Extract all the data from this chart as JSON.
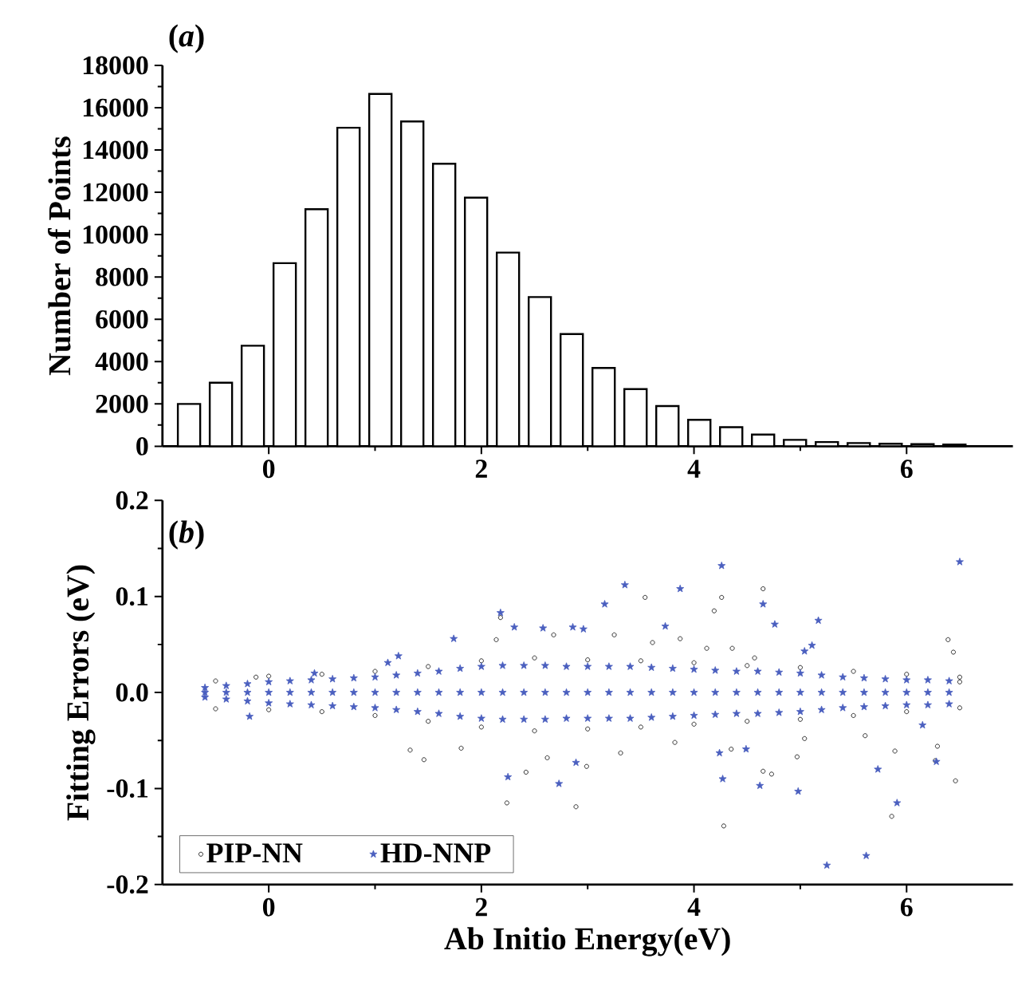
{
  "chart_data": [
    {
      "type": "histogram",
      "ylabel": "Number of Points",
      "annotations": [
        "(*a*)"
      ],
      "bins": [
        -0.9,
        -0.6,
        -0.3,
        0,
        0.3,
        0.6,
        0.9,
        1.2,
        1.5,
        1.8,
        2.1,
        2.4,
        2.7,
        3,
        3.3,
        3.6,
        3.9,
        4.2,
        4.5,
        4.8,
        5.1,
        5.4,
        5.7,
        6,
        6.3,
        6.6
      ],
      "values": [
        2000,
        3000,
        4750,
        8650,
        11200,
        15050,
        16650,
        15350,
        13350,
        11750,
        9150,
        7050,
        5300,
        3700,
        2700,
        1900,
        1250,
        900,
        550,
        300,
        200,
        150,
        120,
        100,
        80
      ],
      "color": "#ffffff",
      "xlim": [
        -1,
        7
      ],
      "xticks": [
        0,
        2,
        4,
        6
      ],
      "ylim": [
        0,
        18000
      ],
      "yticks": [
        0,
        2000,
        4000,
        6000,
        8000,
        10000,
        12000,
        14000,
        16000,
        18000
      ]
    },
    {
      "type": "scatter",
      "xlabel": "Ab Initio Energy(eV)",
      "ylabel": "Fitting Errors (eV)",
      "annotations": [
        "(*b*)"
      ],
      "xlim": [
        -1,
        7
      ],
      "xticks": [
        0,
        2,
        4,
        6
      ],
      "ylim": [
        -0.2,
        0.2
      ],
      "yticks": [
        {
          "value": -0.2,
          "label": "-0.2"
        },
        {
          "value": -0.1,
          "label": "-0.1"
        },
        {
          "value": 0,
          "label": "0.0"
        },
        {
          "value": 0.1,
          "label": "0.1"
        },
        {
          "value": 0.2,
          "label": "0.2"
        }
      ],
      "legend": "bottom left",
      "series": [
        {
          "name": "PIP-NN",
          "color": "#000000",
          "marker": "circle",
          "x": [
            -0.5,
            0,
            0.5,
            1,
            1.5,
            2,
            2.5,
            3,
            3.5,
            4,
            4.5,
            5,
            5.5,
            6,
            6.5,
            -0.5,
            0,
            0.5,
            1,
            1.5,
            2,
            2.5,
            3,
            3.5,
            4,
            4.5,
            5,
            5.5,
            6,
            6.5,
            4.65,
            4.26,
            3.54,
            4.19,
            2.18,
            6.39,
            6.44,
            2.14,
            2.68,
            3.25,
            3.61,
            3.87,
            4.12,
            4.36,
            4.57,
            1.33,
            1.46,
            1.81,
            2.24,
            2.42,
            2.62,
            2.89,
            2.99,
            3.31,
            3.82,
            4.28,
            4.35,
            4.62,
            4.65,
            4.73,
            5.04,
            4.97,
            5.61,
            5.89,
            5.86,
            6.46,
            6.29,
            6.27,
            6.5,
            -0.12
          ],
          "values": [
            0.012,
            0.017,
            0.019,
            0.022,
            0.027,
            0.033,
            0.036,
            0.034,
            0.033,
            0.031,
            0.028,
            0.026,
            0.022,
            0.019,
            0.016,
            -0.017,
            -0.018,
            -0.02,
            -0.024,
            -0.03,
            -0.036,
            -0.04,
            -0.038,
            -0.036,
            -0.033,
            -0.03,
            -0.028,
            -0.024,
            -0.02,
            -0.016,
            0.108,
            0.099,
            0.099,
            0.085,
            0.078,
            0.055,
            0.042,
            0.055,
            0.06,
            0.06,
            0.052,
            0.056,
            0.046,
            0.046,
            0.036,
            -0.06,
            -0.07,
            -0.058,
            -0.115,
            -0.083,
            -0.068,
            -0.119,
            -0.077,
            -0.063,
            -0.052,
            -0.139,
            -0.059,
            null,
            -0.082,
            -0.085,
            -0.048,
            -0.067,
            -0.045,
            -0.061,
            -0.129,
            -0.092,
            -0.056,
            -0.071,
            0.011,
            0.016
          ]
        },
        {
          "name": "HD-NNP",
          "color": "#4a5fbf",
          "marker": "star",
          "x": [
            -0.6,
            -0.4,
            -0.2,
            0,
            0.2,
            0.4,
            0.6,
            0.8,
            1,
            1.2,
            1.4,
            1.6,
            1.8,
            2,
            2.2,
            2.4,
            2.6,
            2.8,
            3,
            3.2,
            3.4,
            3.6,
            3.8,
            4,
            4.2,
            4.4,
            4.6,
            4.8,
            5,
            5.2,
            5.4,
            5.6,
            5.8,
            6,
            6.2,
            6.4,
            -0.6,
            -0.4,
            -0.2,
            0,
            0.2,
            0.4,
            0.6,
            0.8,
            1,
            1.2,
            1.4,
            1.6,
            1.8,
            2,
            2.2,
            2.4,
            2.6,
            2.8,
            3,
            3.2,
            3.4,
            3.6,
            3.8,
            4,
            4.2,
            4.4,
            4.6,
            4.8,
            5,
            5.2,
            5.4,
            5.6,
            5.8,
            6,
            6.2,
            6.4,
            -0.6,
            -0.4,
            -0.2,
            0,
            0.2,
            0.4,
            0.6,
            0.8,
            1,
            1.2,
            1.4,
            1.6,
            1.8,
            2,
            2.2,
            2.4,
            2.6,
            2.8,
            3,
            3.2,
            3.4,
            3.6,
            3.8,
            4,
            4.2,
            4.4,
            4.6,
            4.8,
            5,
            5.2,
            5.4,
            5.6,
            5.8,
            6,
            6.2,
            6.4,
            6.5,
            4.26,
            3.35,
            3.87,
            3.16,
            4.65,
            2.18,
            2.31,
            2.58,
            2.86,
            2.96,
            3.73,
            5.17,
            4.76,
            1.74,
            5.11,
            5.04,
            -0.18,
            2.25,
            2.73,
            4.62,
            4.98,
            5.25,
            5.62,
            5.91,
            5.73,
            4.24,
            4.49,
            4.27,
            2.89,
            6.28,
            6.15,
            1.22,
            1.12,
            0.43
          ],
          "values": [
            0.005,
            0.007,
            0.009,
            0.011,
            0.012,
            0.013,
            0.014,
            0.015,
            0.016,
            0.018,
            0.02,
            0.022,
            0.025,
            0.027,
            0.028,
            0.028,
            0.028,
            0.027,
            0.027,
            0.027,
            0.027,
            0.026,
            0.025,
            0.024,
            0.023,
            0.022,
            0.022,
            0.021,
            0.02,
            0.018,
            0.016,
            0.015,
            0.014,
            0.013,
            0.013,
            0.012,
            0,
            0,
            0,
            0,
            0,
            0,
            0,
            0,
            0,
            0,
            0,
            0,
            0,
            0,
            0,
            0,
            0,
            0,
            0,
            0,
            0,
            0,
            0,
            0,
            0,
            0,
            0,
            0,
            0,
            0,
            0,
            0,
            0,
            0,
            0,
            0,
            -0.005,
            -0.007,
            -0.009,
            -0.011,
            -0.012,
            -0.013,
            -0.014,
            -0.015,
            -0.016,
            -0.018,
            -0.02,
            -0.022,
            -0.025,
            -0.027,
            -0.028,
            -0.028,
            -0.028,
            -0.027,
            -0.027,
            -0.027,
            -0.027,
            -0.026,
            -0.025,
            -0.024,
            -0.023,
            -0.022,
            -0.022,
            -0.021,
            -0.02,
            -0.018,
            -0.016,
            -0.015,
            -0.014,
            -0.013,
            -0.013,
            -0.012,
            0.136,
            0.132,
            0.112,
            0.108,
            0.092,
            0.092,
            0.083,
            0.068,
            0.067,
            0.068,
            0.066,
            0.069,
            0.075,
            0.071,
            0.056,
            0.049,
            0.043,
            -0.025,
            -0.088,
            -0.095,
            -0.097,
            -0.103,
            -0.18,
            -0.17,
            -0.115,
            -0.08,
            -0.063,
            -0.059,
            -0.09,
            -0.073,
            -0.072,
            -0.034,
            0.038,
            0.031,
            0.02
          ]
        }
      ]
    }
  ]
}
